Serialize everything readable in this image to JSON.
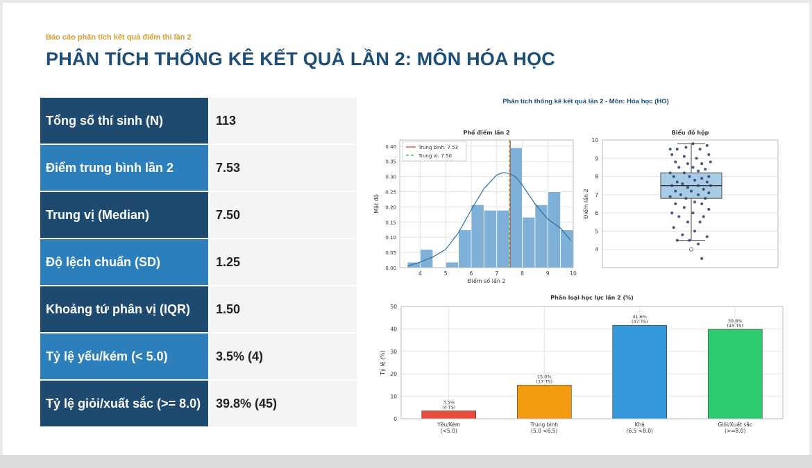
{
  "header": {
    "subtitle": "Báo cáo phân tích kết quả điểm thi lần 2",
    "title": "PHÂN TÍCH THỐNG KÊ KẾT QUẢ LẦN 2: MÔN HÓA HỌC"
  },
  "stats": [
    {
      "label": "Tổng số thí sinh (N)",
      "value": "113",
      "style": "dark"
    },
    {
      "label": "Điểm trung bình lần 2",
      "value": "7.53",
      "style": "light"
    },
    {
      "label": "Trung vị (Median)",
      "value": "7.50",
      "style": "dark"
    },
    {
      "label": "Độ lệch chuẩn (SD)",
      "value": "1.25",
      "style": "light"
    },
    {
      "label": "Khoảng tứ phân vị (IQR)",
      "value": "1.50",
      "style": "dark"
    },
    {
      "label": "Tỷ lệ yếu/kém (< 5.0)",
      "value": "3.5% (4)",
      "style": "light"
    },
    {
      "label": "Tỷ lệ giỏi/xuất sắc (>= 8.0)",
      "value": "39.8% (45)",
      "style": "dark"
    }
  ],
  "figure_title": "Phân tích thống kê kết quả lần 2 - Môn: Hóa học (HO)",
  "colors": {
    "header_dark": "#1e4a70",
    "header_light": "#2d7fbc",
    "accent_gold": "#d69e2e",
    "hist_bar": "#7fb1d8",
    "mean_line": "#e74c3c",
    "median_line": "#2ecc71"
  },
  "chart_data": [
    {
      "type": "bar",
      "subtype": "histogram",
      "title": "Phổ điểm lần 2",
      "xlabel": "Điểm số lần 2",
      "ylabel": "Mật độ",
      "xlim": [
        3.2,
        10
      ],
      "ylim": [
        0,
        0.42
      ],
      "xticks": [
        4,
        5,
        6,
        7,
        8,
        9,
        10
      ],
      "yticks": [
        0.0,
        0.05,
        0.1,
        0.15,
        0.2,
        0.25,
        0.3,
        0.35,
        0.4
      ],
      "bin_edges": [
        3.5,
        4.0,
        4.5,
        5.0,
        5.5,
        6.0,
        6.5,
        7.0,
        7.5,
        8.0,
        8.5,
        9.0,
        9.5,
        10.0
      ],
      "values": [
        0.018,
        0.06,
        0.0,
        0.018,
        0.124,
        0.207,
        0.189,
        0.189,
        0.395,
        0.166,
        0.207,
        0.25,
        0.124
      ],
      "kde": {
        "x": [
          3.5,
          4.0,
          4.5,
          5.0,
          5.5,
          6.0,
          6.5,
          7.0,
          7.25,
          7.5,
          7.75,
          8.0,
          8.5,
          9.0,
          9.5,
          9.9
        ],
        "y": [
          0.005,
          0.018,
          0.035,
          0.06,
          0.115,
          0.19,
          0.26,
          0.305,
          0.313,
          0.31,
          0.298,
          0.272,
          0.21,
          0.16,
          0.13,
          0.09
        ]
      },
      "mean": 7.53,
      "median": 7.5,
      "legend": [
        "Trung bình: 7.53",
        "Trung vị: 7.50"
      ],
      "legend_position": "top-left",
      "grid": true
    },
    {
      "type": "scatter",
      "subtype": "boxplot",
      "title": "Biểu đồ hộp",
      "ylabel": "Điểm lần 2",
      "ylim": [
        3,
        10
      ],
      "yticks": [
        4,
        5,
        6,
        7,
        8,
        9,
        10
      ],
      "box": {
        "q1": 6.8,
        "median": 7.5,
        "q3": 8.2,
        "whisker_low": 4.5,
        "whisker_high": 9.8
      },
      "outliers": [
        4.0
      ],
      "points": [
        [
          -0.6,
          9.5
        ],
        [
          -0.4,
          9.5
        ],
        [
          -0.15,
          9.6
        ],
        [
          0.05,
          9.8
        ],
        [
          0.25,
          9.5
        ],
        [
          0.45,
          9.7
        ],
        [
          -0.55,
          9.2
        ],
        [
          -0.2,
          9.1
        ],
        [
          0.15,
          9.0
        ],
        [
          0.5,
          9.2
        ],
        [
          -0.45,
          8.8
        ],
        [
          -0.1,
          8.7
        ],
        [
          0.3,
          8.7
        ],
        [
          0.55,
          8.8
        ],
        [
          -0.35,
          8.5
        ],
        [
          0.05,
          8.5
        ],
        [
          0.4,
          8.4
        ],
        [
          -0.6,
          8.2
        ],
        [
          -0.2,
          8.2
        ],
        [
          0.2,
          8.3
        ],
        [
          0.5,
          8.0
        ],
        [
          -0.5,
          8.0
        ],
        [
          -0.05,
          8.0
        ],
        [
          0.3,
          7.9
        ],
        [
          -0.4,
          7.7
        ],
        [
          0.1,
          7.8
        ],
        [
          0.45,
          7.7
        ],
        [
          -0.25,
          7.6
        ],
        [
          0.2,
          7.5
        ],
        [
          -0.55,
          7.5
        ],
        [
          0.55,
          7.5
        ],
        [
          -0.1,
          7.4
        ],
        [
          0.35,
          7.3
        ],
        [
          -0.45,
          7.2
        ],
        [
          0.0,
          7.2
        ],
        [
          0.5,
          7.1
        ],
        [
          -0.3,
          7.0
        ],
        [
          0.2,
          7.0
        ],
        [
          -0.6,
          6.9
        ],
        [
          0.4,
          6.8
        ],
        [
          -0.15,
          6.8
        ],
        [
          0.1,
          6.6
        ],
        [
          -0.45,
          6.5
        ],
        [
          0.3,
          6.5
        ],
        [
          -0.2,
          6.3
        ],
        [
          0.5,
          6.2
        ],
        [
          -0.55,
          6.0
        ],
        [
          0.05,
          6.0
        ],
        [
          0.35,
          5.8
        ],
        [
          -0.35,
          5.8
        ],
        [
          -0.1,
          5.5
        ],
        [
          0.25,
          5.5
        ],
        [
          -0.5,
          5.2
        ],
        [
          0.1,
          5.0
        ],
        [
          -0.25,
          4.8
        ],
        [
          0.45,
          4.7
        ],
        [
          -0.05,
          4.5
        ],
        [
          0.2,
          4.3
        ],
        [
          -0.4,
          4.5
        ],
        [
          0.3,
          3.5
        ]
      ],
      "grid": true
    },
    {
      "type": "bar",
      "title": "Phân loại học lực lần 2 (%)",
      "ylabel": "Tỷ lệ (%)",
      "ylim": [
        0,
        50
      ],
      "yticks": [
        0,
        10,
        20,
        30,
        40,
        50
      ],
      "categories": [
        "Yếu/Kém (<5.0)",
        "Trung bình (5.0 <6.5)",
        "Khá (6.5 <8.0)",
        "Giỏi/Xuất sắc (>=8.0)"
      ],
      "category_lines": [
        [
          "Yếu/Kém",
          "(<5.0)"
        ],
        [
          "Trung bình",
          "(5.0 <6.5)"
        ],
        [
          "Khá",
          "(6.5 <8.0)"
        ],
        [
          "Giỏi/Xuất sắc",
          "(>=8.0)"
        ]
      ],
      "values": [
        3.5,
        15.0,
        41.6,
        39.8
      ],
      "data_labels": [
        [
          "3.5%",
          "(4 TS)"
        ],
        [
          "15.0%",
          "(17 TS)"
        ],
        [
          "41.6%",
          "(47 TS)"
        ],
        [
          "39.8%",
          "(45 TS)"
        ]
      ],
      "colors": [
        "#e74c3c",
        "#f39c12",
        "#3498db",
        "#2ecc71"
      ],
      "grid": true
    }
  ]
}
